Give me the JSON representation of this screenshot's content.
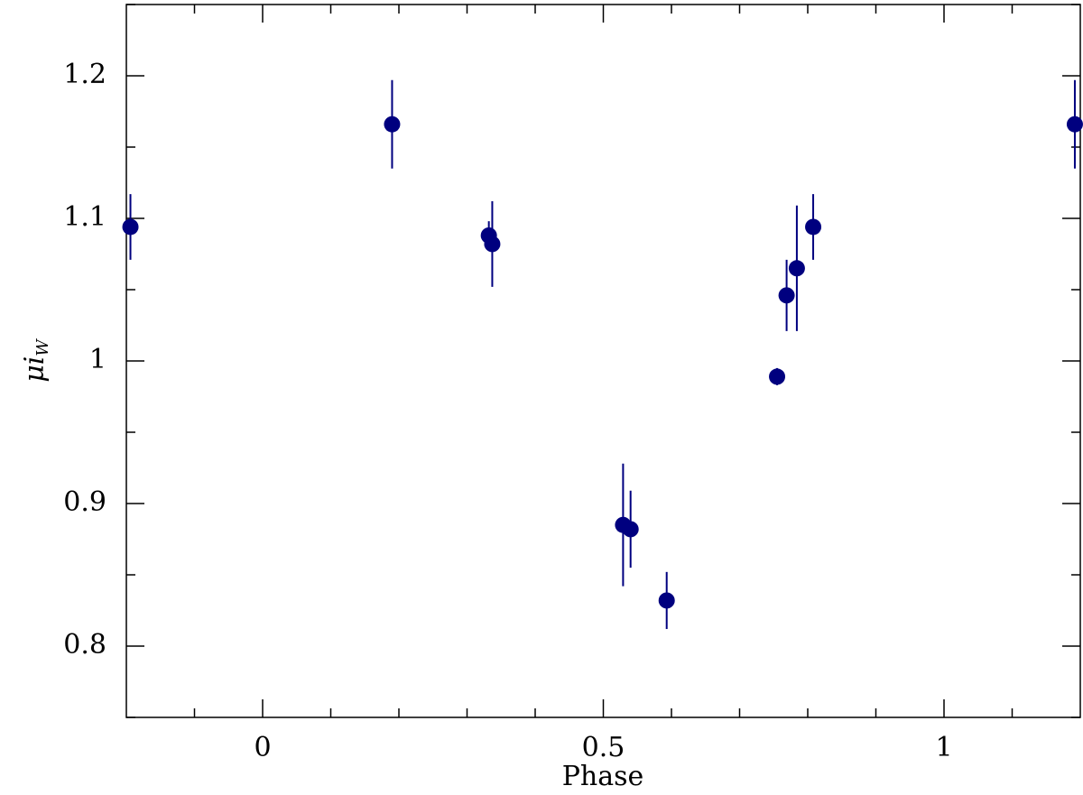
{
  "chart_data": {
    "type": "scatter",
    "xlabel": "Phase",
    "ylabel": "μi",
    "ylabel_sub": "W",
    "color": "#00007f",
    "x": [
      -0.194,
      0.19,
      0.332,
      0.337,
      0.529,
      0.54,
      0.593,
      0.755,
      0.769,
      0.784,
      0.808,
      1.192
    ],
    "values": [
      1.094,
      1.166,
      1.088,
      1.082,
      0.885,
      0.882,
      0.832,
      0.989,
      1.046,
      1.065,
      1.094,
      1.166
    ],
    "errors": [
      0.023,
      0.031,
      0.01,
      0.03,
      0.043,
      0.027,
      0.02,
      0.006,
      0.025,
      0.044,
      0.023,
      0.031
    ],
    "xlim": [
      -0.2,
      1.2
    ],
    "ylim": [
      0.75,
      1.25
    ],
    "xticks": [
      0,
      0.5,
      1
    ],
    "yticks": [
      0.8,
      0.9,
      1,
      1.1,
      1.2
    ],
    "xticks_minor": [
      -0.1,
      0.1,
      0.2,
      0.3,
      0.4,
      0.6,
      0.7,
      0.8,
      0.9,
      1.1
    ],
    "yticks_minor": [
      0.75,
      0.85,
      0.95,
      1.05,
      1.15,
      1.25
    ]
  }
}
